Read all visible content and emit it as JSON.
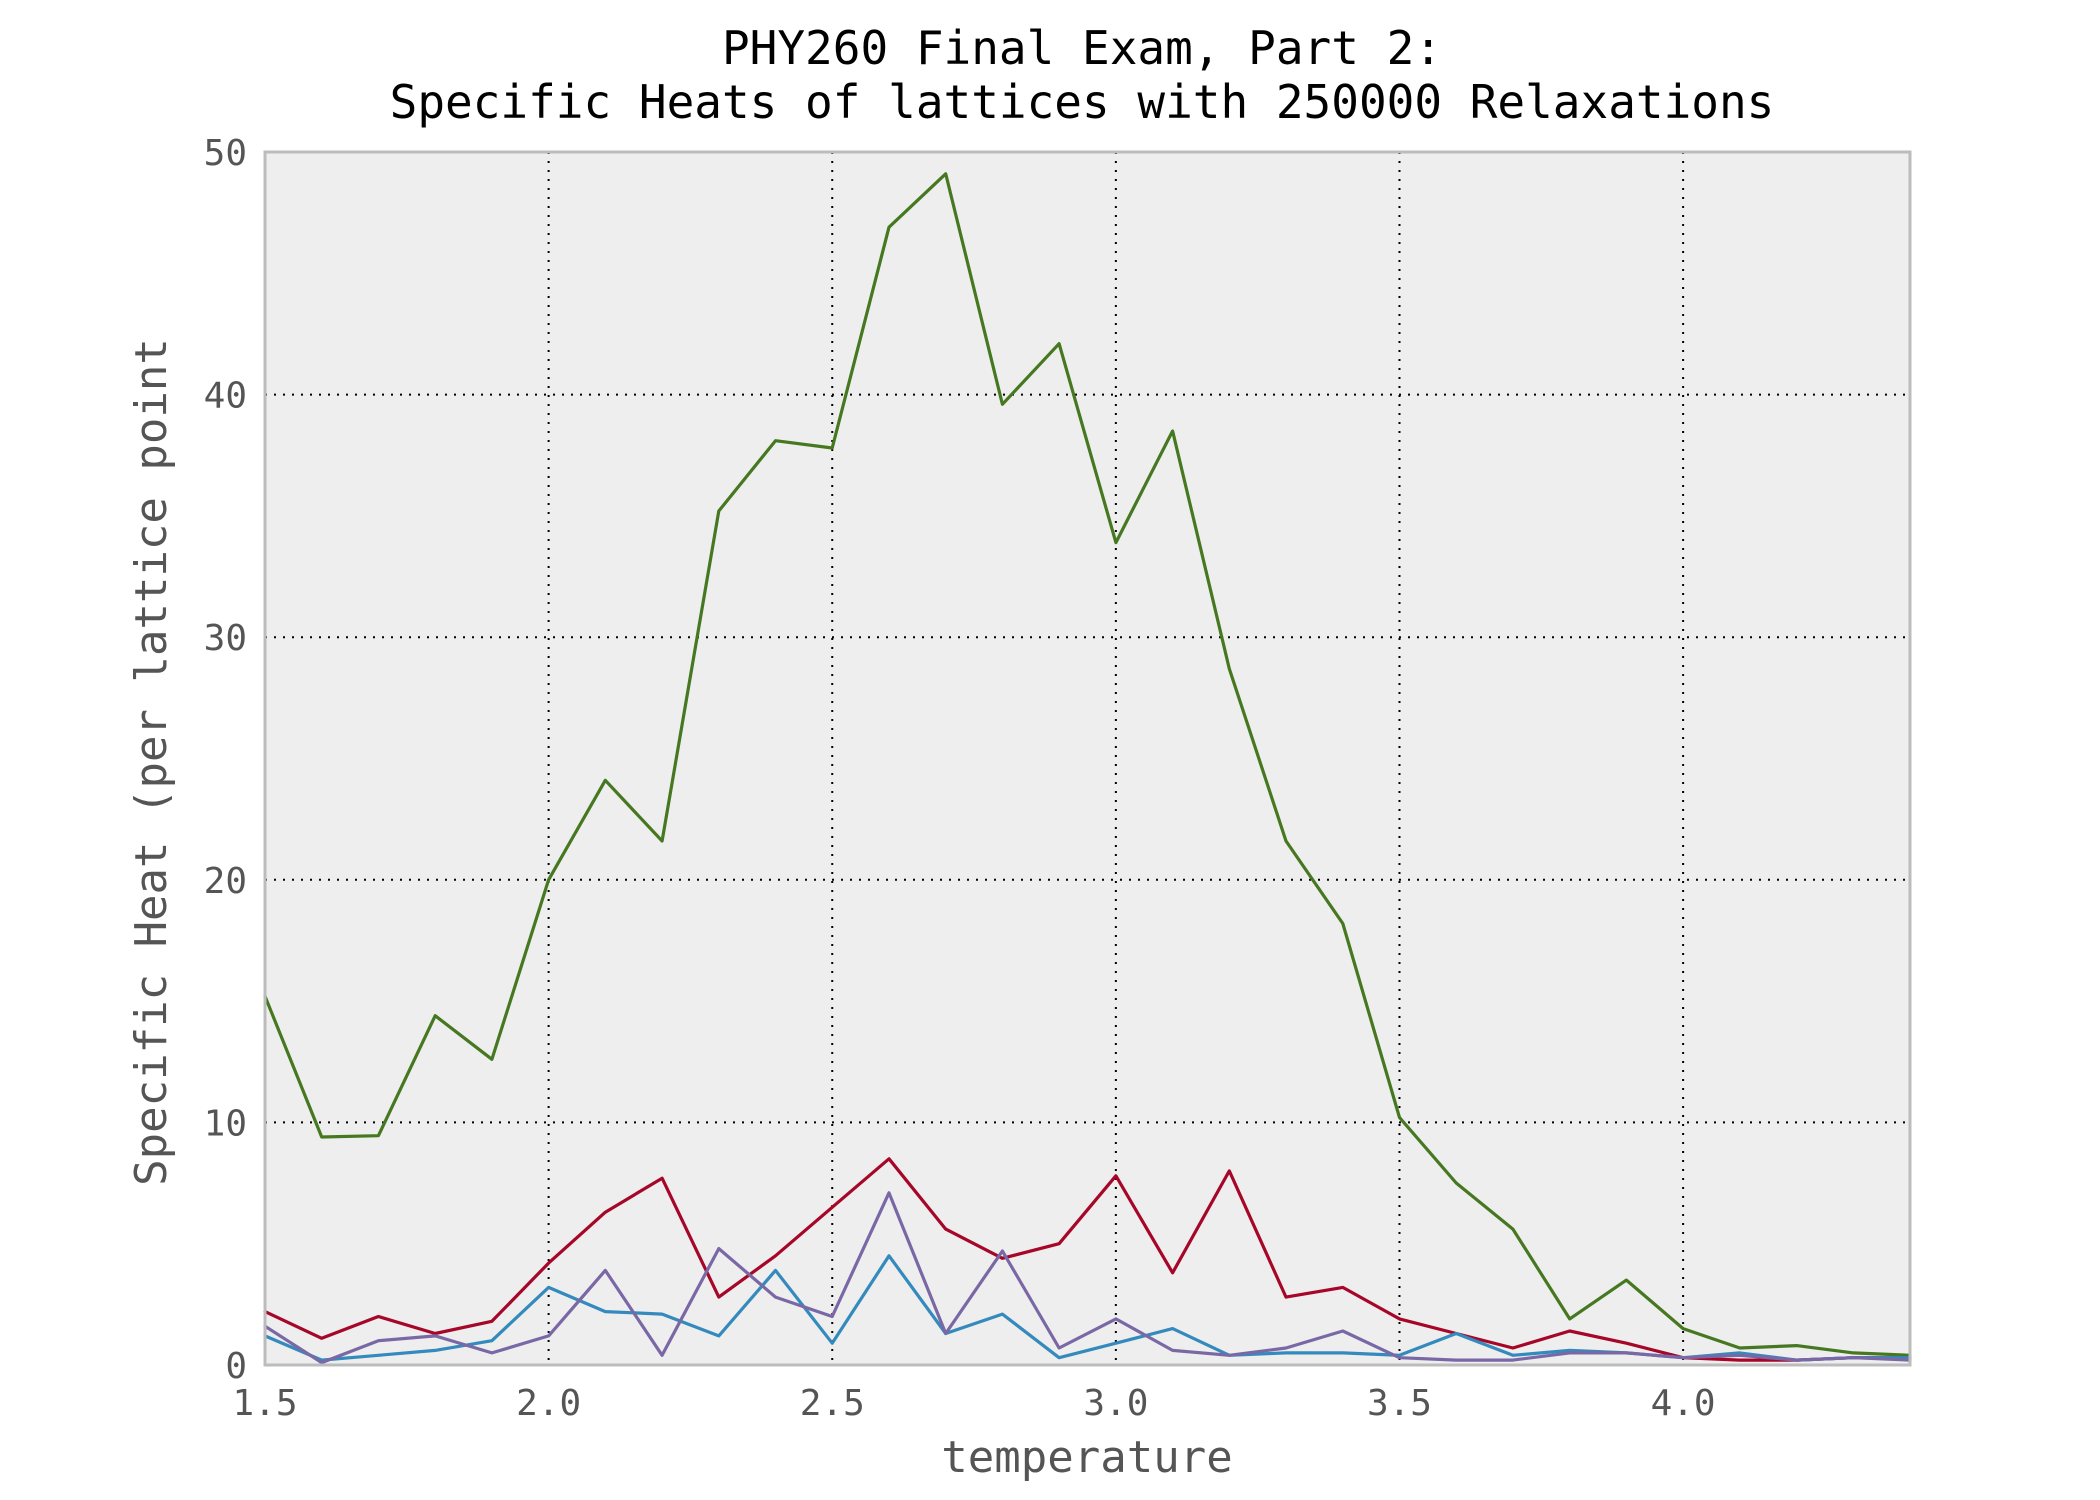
{
  "chart_data": {
    "type": "line",
    "title_line1": "PHY260 Final Exam, Part 2:",
    "title_line2": "Specific Heats of lattices with 250000 Relaxations",
    "xlabel": "temperature",
    "ylabel": "Specific Heat (per lattice point",
    "xlim": [
      1.5,
      4.4
    ],
    "ylim": [
      0,
      50
    ],
    "xticks": [
      1.5,
      2.0,
      2.5,
      3.0,
      3.5,
      4.0
    ],
    "xtick_labels": [
      "1.5",
      "2.0",
      "2.5",
      "3.0",
      "3.5",
      "4.0"
    ],
    "yticks": [
      0,
      10,
      20,
      30,
      40,
      50
    ],
    "ytick_labels": [
      "0",
      "10",
      "20",
      "30",
      "40",
      "50"
    ],
    "grid": true,
    "background_color": "#eeeeee",
    "x": [
      1.5,
      1.6,
      1.7,
      1.8,
      1.9,
      2.0,
      2.1,
      2.2,
      2.3,
      2.4,
      2.5,
      2.6,
      2.7,
      2.8,
      2.9,
      3.0,
      3.1,
      3.2,
      3.3,
      3.4,
      3.5,
      3.6,
      3.7,
      3.8,
      3.9,
      4.0,
      4.1,
      4.2,
      4.3,
      4.4
    ],
    "series": [
      {
        "color": "#467821",
        "values": [
          15.2,
          9.4,
          9.45,
          14.4,
          12.6,
          20.0,
          24.1,
          21.6,
          35.2,
          38.1,
          37.8,
          46.9,
          49.1,
          39.6,
          42.1,
          33.9,
          38.5,
          28.7,
          21.6,
          18.2,
          10.2,
          7.5,
          5.6,
          1.9,
          3.5,
          1.5,
          0.7,
          0.8,
          0.5,
          0.4
        ]
      },
      {
        "color": "#a60628",
        "values": [
          2.2,
          1.1,
          2.0,
          1.3,
          1.8,
          4.2,
          6.3,
          7.7,
          2.8,
          4.5,
          6.5,
          8.5,
          5.6,
          4.4,
          5.0,
          7.8,
          3.8,
          8.0,
          2.8,
          3.2,
          1.9,
          1.3,
          0.7,
          1.4,
          0.9,
          0.3,
          0.2,
          0.2,
          0.3,
          0.3
        ]
      },
      {
        "color": "#348abd",
        "values": [
          1.2,
          0.2,
          0.4,
          0.6,
          1.0,
          3.2,
          2.2,
          2.1,
          1.2,
          3.9,
          0.9,
          4.5,
          1.3,
          2.1,
          0.3,
          0.9,
          1.5,
          0.4,
          0.5,
          0.5,
          0.4,
          1.3,
          0.4,
          0.6,
          0.5,
          0.3,
          0.5,
          0.2,
          0.3,
          0.3
        ]
      },
      {
        "color": "#7a68a6",
        "values": [
          1.6,
          0.1,
          1.0,
          1.2,
          0.5,
          1.2,
          3.9,
          0.4,
          4.8,
          2.8,
          2.0,
          7.1,
          1.3,
          4.7,
          0.7,
          1.9,
          0.6,
          0.4,
          0.7,
          1.4,
          0.3,
          0.2,
          0.2,
          0.5,
          0.5,
          0.3,
          0.4,
          0.2,
          0.3,
          0.2
        ]
      }
    ]
  }
}
